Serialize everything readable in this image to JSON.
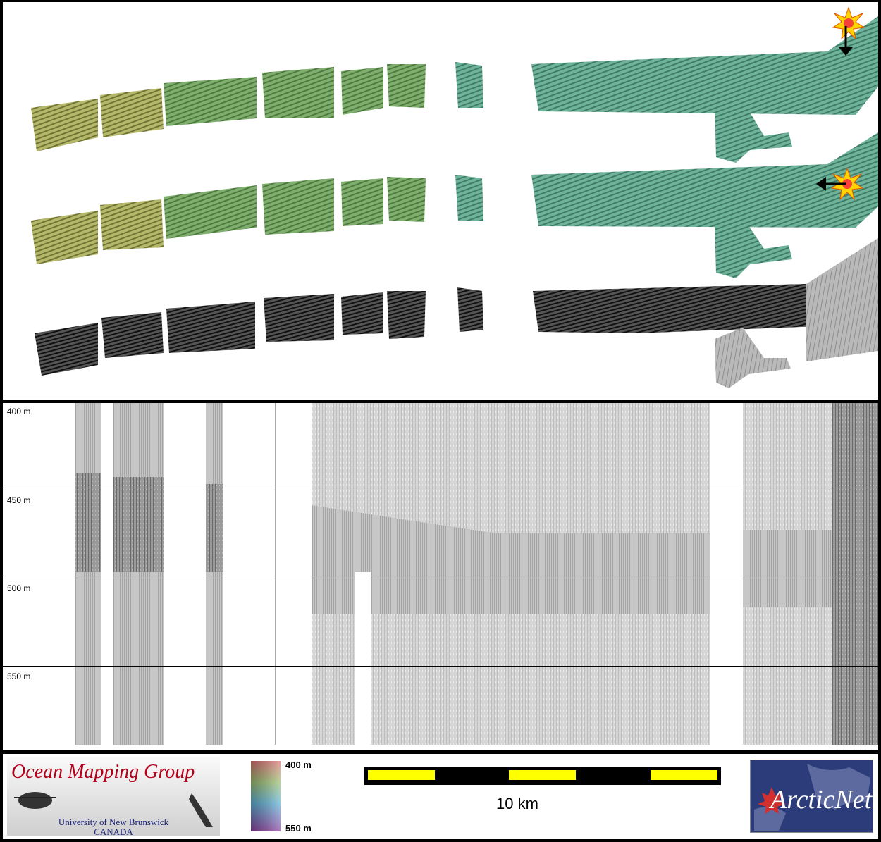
{
  "depth_axis": {
    "labels": [
      "400 m",
      "450 m",
      "500 m",
      "550 m"
    ]
  },
  "logos": {
    "omg": {
      "title": "Ocean Mapping Group",
      "university": "University of New Brunswick",
      "country": "CANADA"
    },
    "arcticnet": {
      "text": "ArcticNet",
      "accent_color": "#d32f2f"
    }
  },
  "colorbar": {
    "top_label": "400 m",
    "bottom_label": "550 m"
  },
  "scalebar": {
    "label": "10 km",
    "colors": {
      "fill": "#ffff00",
      "background": "#000000"
    }
  },
  "icons": [
    "starburst-icon",
    "arrow-down-icon",
    "arrow-left-icon",
    "maple-leaf-icon"
  ]
}
